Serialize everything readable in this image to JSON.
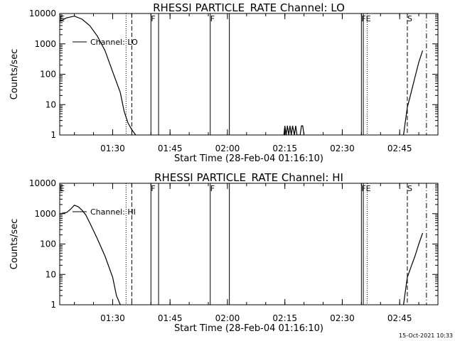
{
  "chart_data": [
    {
      "type": "line",
      "title": "RHESSI PARTICLE_RATE Channel: LO",
      "xlabel": "Start Time (28-Feb-04 01:16:10)",
      "ylabel": "Counts/sec",
      "xlim": [
        "01:16:10",
        "02:55:00"
      ],
      "ylim": [
        1,
        10000
      ],
      "yscale": "log",
      "xticks": [
        "01:30",
        "01:45",
        "02:00",
        "02:15",
        "02:30",
        "02:45"
      ],
      "yticks": [
        "1",
        "10",
        "100",
        "1000",
        "10000"
      ],
      "legend": {
        "label": "Channel: LO",
        "position": "top-left"
      },
      "series": [
        {
          "name": "Channel: LO",
          "x": [
            "01:16:10",
            "01:18:00",
            "01:20:00",
            "01:22:00",
            "01:24:00",
            "01:26:00",
            "01:28:00",
            "01:30:00",
            "01:32:00",
            "01:33:00",
            "01:34:00",
            "01:35:00",
            "01:36:00"
          ],
          "y": [
            5500,
            7200,
            8200,
            6500,
            4000,
            1800,
            600,
            120,
            25,
            6,
            2.5,
            1.5,
            1
          ]
        },
        {
          "name": "Channel: LO",
          "x": [
            "02:14:45",
            "02:15:00",
            "02:15:20",
            "02:15:40",
            "02:16:00",
            "02:16:20",
            "02:16:40",
            "02:17:00",
            "02:17:30",
            "02:17:50",
            "02:18:10",
            "02:19:00",
            "02:19:20",
            "02:19:40",
            "02:20:00"
          ],
          "y": [
            1,
            2,
            1,
            2,
            1,
            2,
            1,
            2,
            1,
            2,
            1,
            1,
            2,
            2,
            1
          ]
        },
        {
          "name": "Channel: LO",
          "x": [
            "02:46:00",
            "02:47:00",
            "02:48:00",
            "02:49:00",
            "02:50:00",
            "02:51:00"
          ],
          "y": [
            1,
            8,
            25,
            80,
            250,
            600
          ]
        }
      ],
      "vlines": [
        {
          "time": "01:33:30",
          "style": "dotted",
          "label": ""
        },
        {
          "time": "01:35:00",
          "style": "dashed",
          "label": ""
        },
        {
          "time": "01:40:00",
          "style": "solid",
          "label": "F"
        },
        {
          "time": "01:42:00",
          "style": "solid",
          "label": ""
        },
        {
          "time": "01:55:30",
          "style": "solid",
          "label": "F"
        },
        {
          "time": "02:00:30",
          "style": "solid",
          "label": ""
        },
        {
          "time": "02:35:00",
          "style": "solid",
          "label": "F"
        },
        {
          "time": "02:35:30",
          "style": "solid",
          "label": ""
        },
        {
          "time": "02:36:30",
          "style": "dotted",
          "label": "E"
        },
        {
          "time": "02:47:00",
          "style": "dashed",
          "label": "S"
        },
        {
          "time": "02:52:00",
          "style": "dashdot",
          "label": ""
        }
      ],
      "top_labels": [
        {
          "time": "01:16:10",
          "text": "E"
        },
        {
          "time": "01:40:00",
          "text": "F"
        },
        {
          "time": "01:55:30",
          "text": "F"
        },
        {
          "time": "02:35:00",
          "text": "FE"
        },
        {
          "time": "02:47:00",
          "text": "S"
        }
      ]
    },
    {
      "type": "line",
      "title": "RHESSI PARTICLE_RATE Channel: HI",
      "xlabel": "Start Time (28-Feb-04 01:16:10)",
      "ylabel": "Counts/sec",
      "xlim": [
        "01:16:10",
        "02:55:00"
      ],
      "ylim": [
        1,
        10000
      ],
      "yscale": "log",
      "xticks": [
        "01:30",
        "01:45",
        "02:00",
        "02:15",
        "02:30",
        "02:45"
      ],
      "yticks": [
        "1",
        "10",
        "100",
        "1000",
        "10000"
      ],
      "legend": {
        "label": "Channel: HI",
        "position": "top-left"
      },
      "series": [
        {
          "name": "Channel: HI",
          "x": [
            "01:16:10",
            "01:18:00",
            "01:19:00",
            "01:20:00",
            "01:21:00",
            "01:22:00",
            "01:23:00",
            "01:24:00",
            "01:26:00",
            "01:28:00",
            "01:30:00",
            "01:31:00",
            "01:32:00"
          ],
          "y": [
            1000,
            1100,
            1400,
            1900,
            1700,
            1300,
            900,
            500,
            150,
            40,
            8,
            2,
            1
          ]
        },
        {
          "name": "Channel: HI",
          "x": [
            "02:46:00",
            "02:47:00",
            "02:48:00",
            "02:49:00",
            "02:50:00",
            "02:51:00"
          ],
          "y": [
            1,
            8,
            18,
            40,
            100,
            230
          ]
        }
      ],
      "vlines": [
        {
          "time": "01:33:30",
          "style": "dotted",
          "label": ""
        },
        {
          "time": "01:35:00",
          "style": "dashed",
          "label": ""
        },
        {
          "time": "01:40:00",
          "style": "solid",
          "label": "F"
        },
        {
          "time": "01:42:00",
          "style": "solid",
          "label": ""
        },
        {
          "time": "01:55:30",
          "style": "solid",
          "label": "F"
        },
        {
          "time": "02:00:30",
          "style": "solid",
          "label": ""
        },
        {
          "time": "02:35:00",
          "style": "solid",
          "label": "F"
        },
        {
          "time": "02:35:30",
          "style": "solid",
          "label": ""
        },
        {
          "time": "02:36:30",
          "style": "dotted",
          "label": "E"
        },
        {
          "time": "02:47:00",
          "style": "dashed",
          "label": "S"
        },
        {
          "time": "02:52:00",
          "style": "dashdot",
          "label": ""
        }
      ],
      "top_labels": [
        {
          "time": "01:16:10",
          "text": "E"
        },
        {
          "time": "01:40:00",
          "text": "F"
        },
        {
          "time": "01:55:30",
          "text": "F"
        },
        {
          "time": "02:35:00",
          "text": "FE"
        },
        {
          "time": "02:47:00",
          "text": "S"
        }
      ]
    }
  ],
  "footer": {
    "timestamp": "15-Oct-2021 10:33"
  }
}
